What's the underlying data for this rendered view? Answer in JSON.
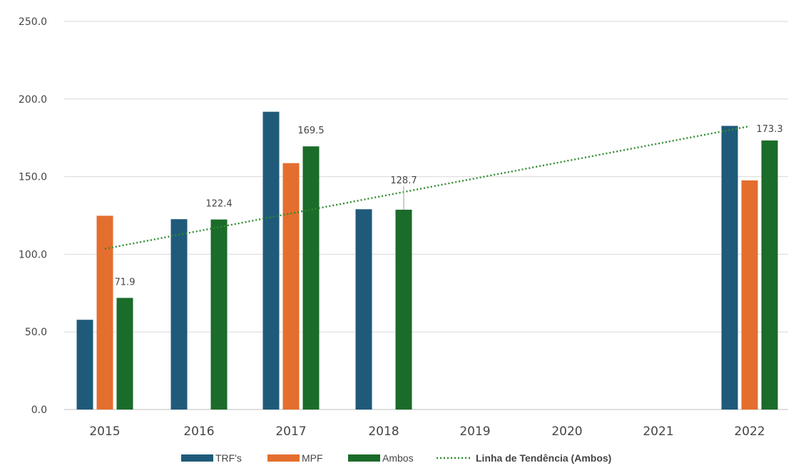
{
  "chart_data": {
    "type": "bar",
    "title": "",
    "xlabel": "",
    "ylabel": "",
    "ylim": [
      0,
      250
    ],
    "yticks": [
      "0.0",
      "50.0",
      "100.0",
      "150.0",
      "200.0",
      "250.0"
    ],
    "categories": [
      "2015",
      "2016",
      "2017",
      "2018",
      "2019",
      "2020",
      "2021",
      "2022"
    ],
    "series": [
      {
        "name": "TRF's",
        "color": "#1f5a7a",
        "values": [
          57.8,
          122.6,
          191.8,
          129.0,
          null,
          null,
          null,
          182.7
        ]
      },
      {
        "name": "MPF",
        "color": "#e46e2e",
        "values": [
          124.8,
          null,
          158.7,
          null,
          null,
          null,
          null,
          147.6
        ]
      },
      {
        "name": "Ambos",
        "color": "#1b6b2a",
        "values": [
          71.9,
          122.4,
          169.5,
          128.7,
          null,
          null,
          null,
          173.3
        ]
      }
    ],
    "data_labels": [
      "71.9",
      "122.4",
      "169.5",
      "128.7",
      "173.3"
    ],
    "trendline": {
      "name": "Linha de Tendência (Ambos)",
      "color": "#2e8b2e",
      "start": {
        "category": "2015",
        "value": 103.5
      },
      "end": {
        "category": "2022",
        "value": 182.5
      }
    },
    "grid": true,
    "legend": "bottom"
  }
}
